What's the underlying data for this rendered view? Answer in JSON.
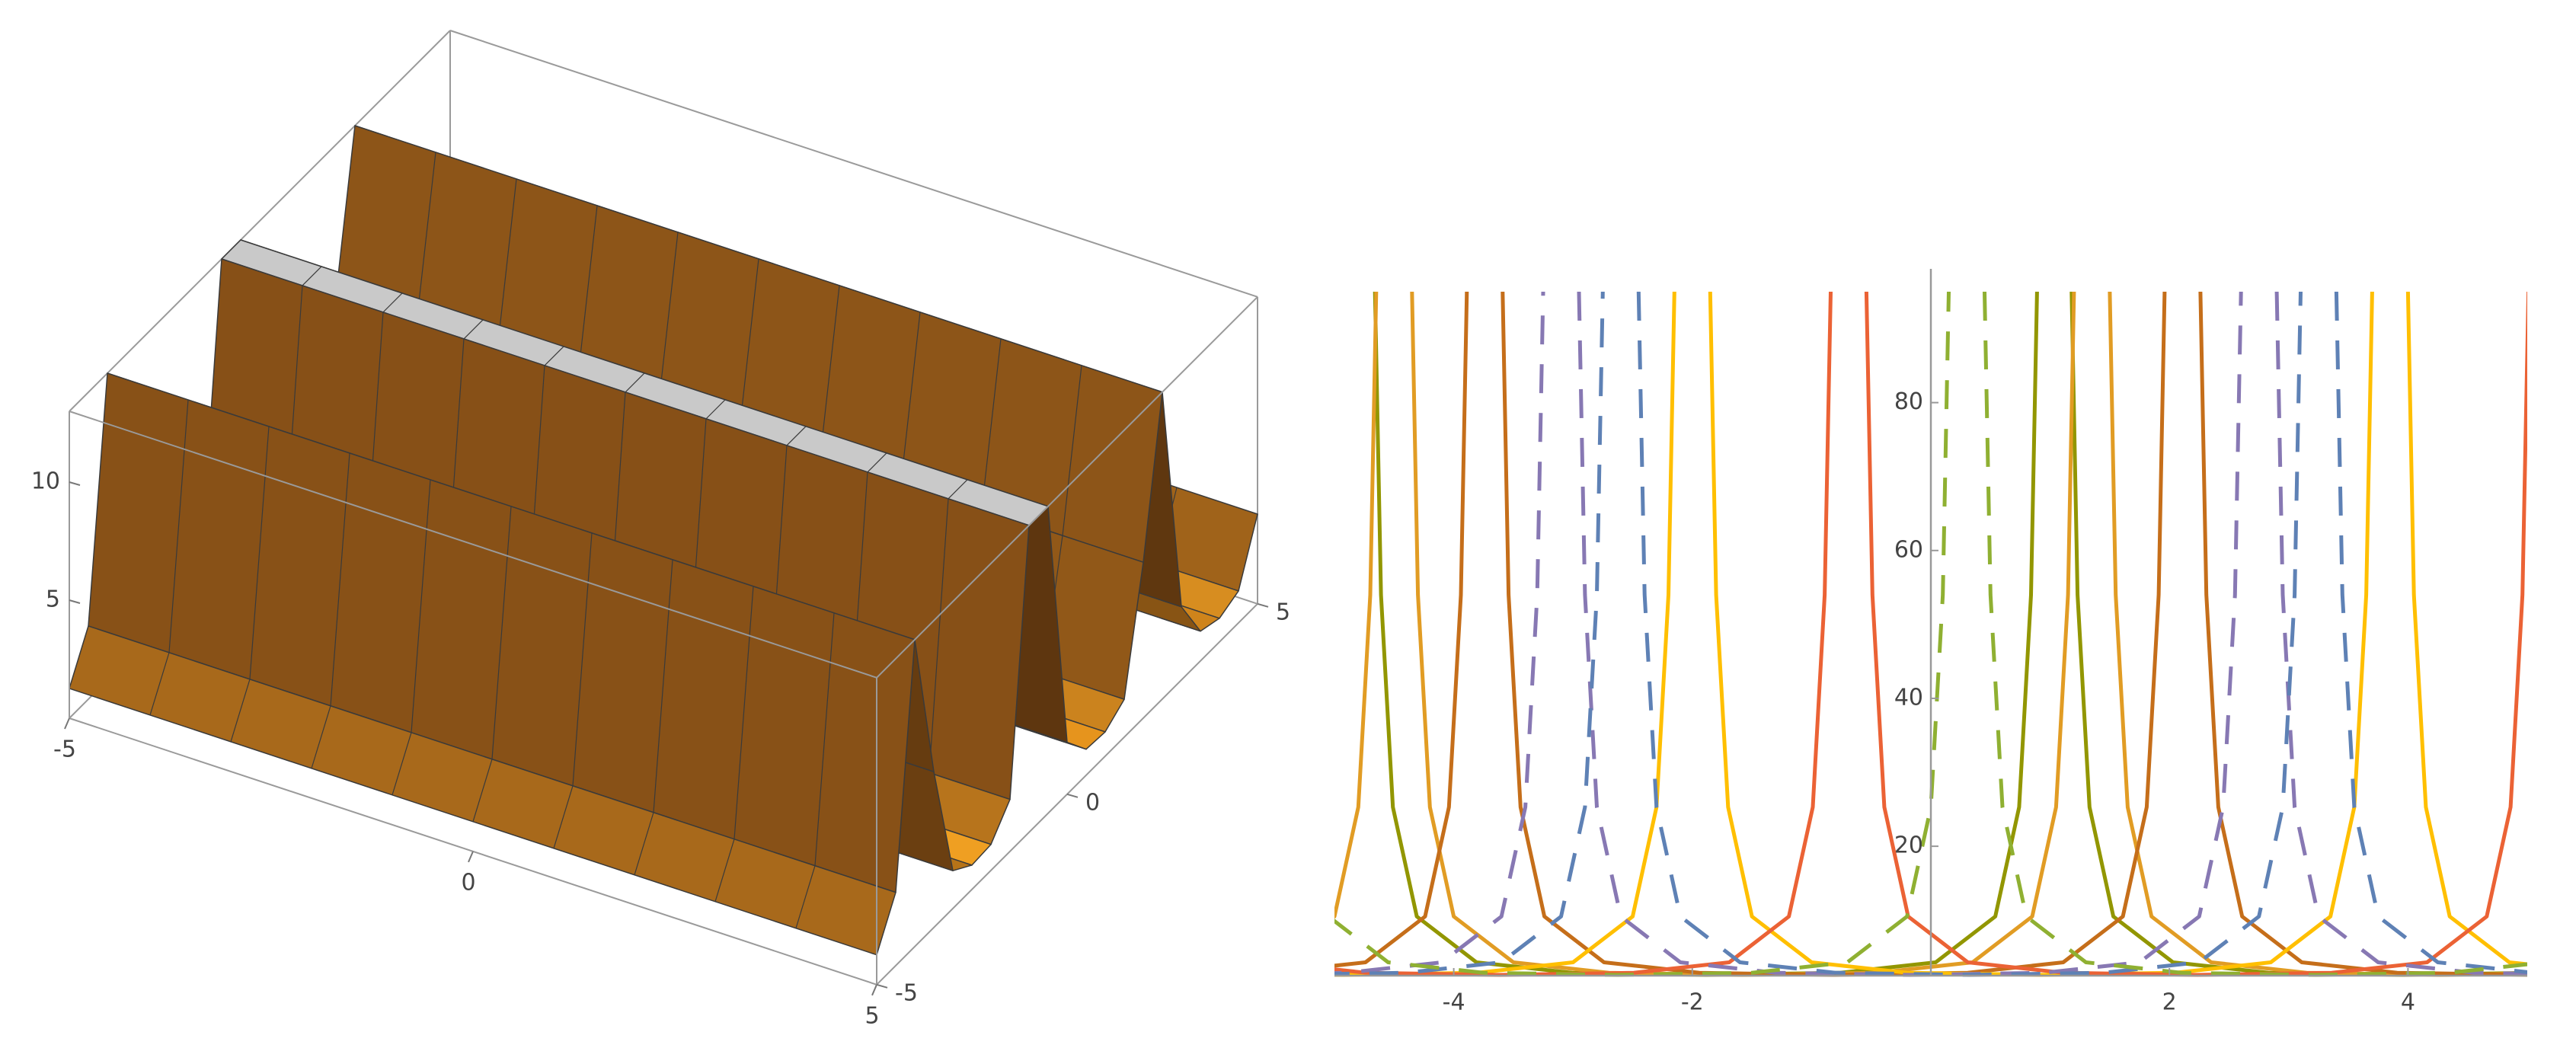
{
  "chart_data": [
    {
      "type": "surface3d",
      "xlim": [
        -5,
        5
      ],
      "ylim": [
        -5,
        5
      ],
      "zlim": [
        0,
        13
      ],
      "xticks": [
        -5,
        0,
        5
      ],
      "yticks": [
        -5,
        0,
        5
      ],
      "zticks": [
        5,
        10
      ],
      "y": [
        -5,
        -4.5,
        -4,
        -3.5,
        -3,
        -2.5,
        -2,
        -1.5,
        -1,
        -0.5,
        0,
        0.5,
        1,
        1.5,
        2,
        2.5,
        3,
        3.5,
        4,
        4.5,
        5
      ],
      "values": [
        1.26,
        3.1,
        13,
        6.6,
        1.6,
        1.03,
        1.1,
        2.2,
        13,
        13,
        2.2,
        1.1,
        1.03,
        1.6,
        6.6,
        13,
        3.1,
        1.26,
        1.0,
        1.35,
        3.8
      ]
    },
    {
      "type": "line",
      "xlim": [
        -5,
        5
      ],
      "ylim": [
        2.5,
        95
      ],
      "xticks": [
        -4,
        -2,
        2,
        4
      ],
      "yticks": [
        20,
        40,
        60,
        80
      ],
      "series": [
        {
          "color": "#929600",
          "dash": false,
          "x": [
            -4.66,
            -4.61,
            -4.51,
            -4.31,
            -3.81,
            -3.01,
            -1.885,
            -0.76,
            0.04,
            0.54,
            0.74,
            0.84,
            0.89,
            null,
            1.18,
            1.23,
            1.33,
            1.53,
            2.03,
            2.83,
            3.955,
            5.08
          ],
          "values": [
            95,
            54,
            25.3,
            10.5,
            4.3,
            2.89,
            2.6,
            2.89,
            4.3,
            10.5,
            25.3,
            54,
            95,
            null,
            95,
            54,
            25.3,
            10.5,
            4.3,
            2.89,
            2.6,
            2.89
          ]
        },
        {
          "color": "#E19C24",
          "dash": false,
          "x": [
            -5.5,
            -5.0,
            -4.8,
            -4.7,
            -4.65,
            null,
            -4.35,
            -4.3,
            -4.2,
            -4.0,
            -3.5,
            -2.7,
            -1.575,
            -0.45,
            0.35,
            0.85,
            1.05,
            1.15,
            1.2,
            null,
            1.5,
            1.55,
            1.65,
            1.85,
            2.35,
            3.15,
            4.275,
            5.4
          ],
          "values": [
            4.3,
            10.5,
            25.3,
            54,
            95,
            null,
            95,
            54,
            25.3,
            10.5,
            4.3,
            2.89,
            2.6,
            2.89,
            4.3,
            10.5,
            25.3,
            54,
            95,
            null,
            95,
            54,
            25.3,
            10.5,
            4.3,
            2.89,
            2.6,
            2.89
          ]
        },
        {
          "color": "#C56E1A",
          "dash": false,
          "x": [
            -5.54,
            -4.74,
            -4.24,
            -4.04,
            -3.94,
            -3.89,
            null,
            -3.59,
            -3.54,
            -3.44,
            -3.24,
            -2.74,
            -1.94,
            -0.815,
            0.31,
            1.11,
            1.61,
            1.81,
            1.91,
            1.96,
            null,
            2.26,
            2.31,
            2.41,
            2.61,
            3.11,
            3.91,
            5.035
          ],
          "values": [
            2.89,
            4.3,
            10.5,
            25.3,
            54,
            95,
            null,
            95,
            54,
            25.3,
            10.5,
            4.3,
            2.89,
            2.6,
            2.89,
            4.3,
            10.5,
            25.3,
            54,
            95,
            null,
            95,
            54,
            25.3,
            10.5,
            4.3,
            2.89,
            2.6
          ]
        },
        {
          "color": "#FFBF00",
          "dash": false,
          "x": [
            -6.05,
            -4.925,
            -3.8,
            -3.0,
            -2.5,
            -2.3,
            -2.2,
            -2.15,
            null,
            -1.85,
            -1.8,
            -1.7,
            -1.5,
            -1.0,
            -0.2,
            0.925,
            2.05,
            2.85,
            3.35,
            3.55,
            3.65,
            3.7,
            null,
            4.0,
            4.05,
            4.15,
            4.35,
            4.85,
            5.65
          ],
          "values": [
            2.89,
            2.6,
            2.89,
            4.3,
            10.5,
            25.3,
            54,
            95,
            null,
            95,
            54,
            25.3,
            10.5,
            4.3,
            2.89,
            2.6,
            2.89,
            4.3,
            10.5,
            25.3,
            54,
            95,
            null,
            95,
            54,
            25.3,
            10.5,
            4.3,
            2.89
          ]
        },
        {
          "color": "#EB6235",
          "dash": false,
          "x": [
            -5.54,
            -4.74,
            -3.615,
            -2.49,
            -1.69,
            -1.19,
            -0.99,
            -0.89,
            -0.84,
            null,
            -0.54,
            -0.49,
            -0.39,
            -0.19,
            0.31,
            1.11,
            2.235,
            3.36,
            4.16,
            4.66,
            4.86,
            4.96,
            5.01
          ],
          "values": [
            4.3,
            2.89,
            2.6,
            2.89,
            4.3,
            10.5,
            25.3,
            54,
            95,
            null,
            95,
            54,
            25.3,
            10.5,
            4.3,
            2.89,
            2.6,
            2.89,
            4.3,
            10.5,
            25.3,
            54,
            95
          ]
        },
        {
          "color": "#8778B3",
          "dash": true,
          "x": [
            -6.0,
            -4.9,
            -4.1,
            -3.6,
            -3.4,
            -3.3,
            -3.25,
            null,
            -2.95,
            -2.9,
            -2.8,
            -2.6,
            -2.1,
            -1.3,
            -0.175,
            0.95,
            1.75,
            2.25,
            2.45,
            2.55,
            2.6,
            null,
            2.9,
            2.95,
            3.05,
            3.25,
            3.75,
            4.55,
            5.675
          ],
          "values": [
            2.6,
            2.89,
            4.3,
            10.5,
            25.3,
            54,
            95,
            null,
            95,
            54,
            25.3,
            10.5,
            4.3,
            2.89,
            2.6,
            2.89,
            4.3,
            10.5,
            25.3,
            54,
            95,
            null,
            95,
            54,
            25.3,
            10.5,
            4.3,
            2.89,
            2.6
          ]
        },
        {
          "color": "#5E81B5",
          "dash": true,
          "x": [
            -5.525,
            -4.4,
            -3.6,
            -3.1,
            -2.9,
            -2.8,
            -2.75,
            null,
            -2.45,
            -2.4,
            -2.3,
            -2.1,
            -1.6,
            -0.8,
            0.325,
            1.45,
            2.25,
            2.75,
            2.95,
            3.05,
            3.1,
            null,
            3.4,
            3.45,
            3.55,
            3.75,
            4.25,
            5.05
          ],
          "values": [
            2.6,
            2.89,
            4.3,
            10.5,
            25.3,
            54,
            95,
            null,
            95,
            54,
            25.3,
            10.5,
            4.3,
            2.89,
            2.6,
            2.89,
            4.3,
            10.5,
            25.3,
            54,
            95,
            null,
            95,
            54,
            25.3,
            10.5,
            4.3,
            2.89
          ]
        },
        {
          "color": "#8FB032",
          "dash": true,
          "x": [
            -5.05,
            -4.55,
            -3.75,
            -2.625,
            -1.5,
            -0.7,
            -0.2,
            0.0,
            0.1,
            0.15,
            null,
            0.45,
            0.5,
            0.6,
            0.8,
            1.3,
            2.1,
            3.225,
            4.35,
            5.15
          ],
          "values": [
            10.5,
            4.3,
            2.89,
            2.6,
            2.89,
            4.3,
            10.5,
            25.3,
            54,
            95,
            null,
            95,
            54,
            25.3,
            10.5,
            4.3,
            2.89,
            2.6,
            2.89,
            4.3
          ]
        }
      ]
    }
  ]
}
